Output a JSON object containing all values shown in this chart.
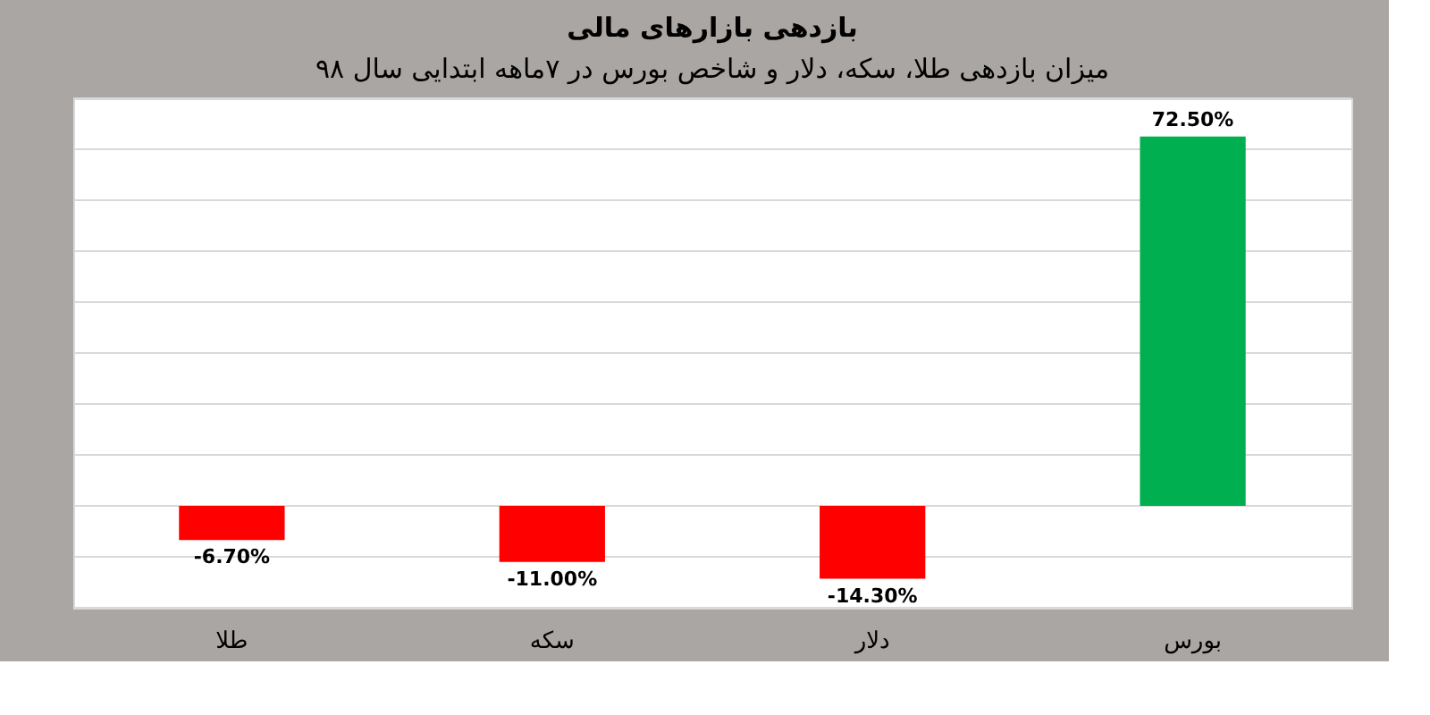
{
  "chart_data": {
    "type": "bar",
    "title": "بازدهی بازارهای مالی",
    "subtitle": "میزان بازدهی طلا، سکه، دلار و شاخص بورس در ۷ماهه ابتدایی سال ۹۸",
    "categories": [
      "طلا",
      "سکه",
      "دلار",
      "بورس"
    ],
    "values": [
      -6.7,
      -11.0,
      -14.3,
      72.5
    ],
    "colors": [
      "#ff0000",
      "#ff0000",
      "#ff0000",
      "#00b050"
    ],
    "value_labels": [
      "-6.70%",
      "-11.00%",
      "-14.30%",
      "72.50%"
    ],
    "ylim": [
      -20,
      80
    ],
    "yticks": [
      {
        "value": -20,
        "label": null
      },
      {
        "value": -10,
        "label": null
      },
      {
        "value": 0,
        "label": null
      },
      {
        "value": 10,
        "label": null
      },
      {
        "value": 20,
        "label": null
      },
      {
        "value": 30,
        "label": null
      },
      {
        "value": 40,
        "label": null
      },
      {
        "value": 50,
        "label": null
      },
      {
        "value": 60,
        "label": null
      },
      {
        "value": 70,
        "label": null
      },
      {
        "value": 80,
        "label": null
      }
    ],
    "grid": "y",
    "tick_labels": "x"
  }
}
